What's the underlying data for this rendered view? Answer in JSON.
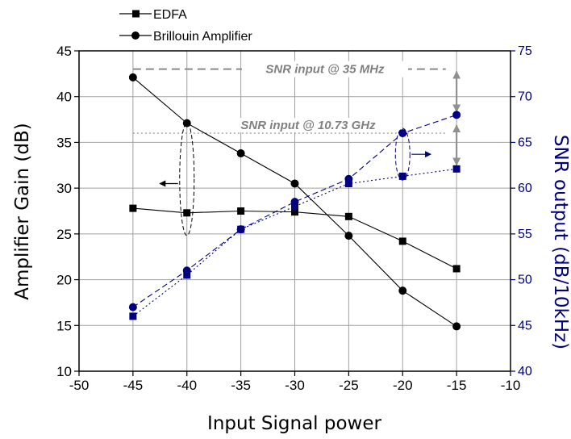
{
  "chart_data": {
    "type": "line",
    "xlabel": "Input Signal power",
    "ylabel": "Amplifier Gain (dB)",
    "y2label": "SNR output (dB/10kHz)",
    "xlim": [
      -50,
      -10
    ],
    "ylim": [
      10,
      45
    ],
    "y2lim": [
      40,
      75
    ],
    "x_ticks": [
      -50,
      -45,
      -40,
      -35,
      -30,
      -25,
      -20,
      -15,
      -10
    ],
    "y_ticks": [
      10,
      15,
      20,
      25,
      30,
      35,
      40,
      45
    ],
    "y2_ticks": [
      40,
      45,
      50,
      55,
      60,
      65,
      70,
      75
    ],
    "grid": true,
    "legend_position": "top-left, above plot",
    "series": [
      {
        "name": "EDFA",
        "axis": "left",
        "marker": "square",
        "color": "#000000",
        "x": [
          -45,
          -40,
          -35,
          -30,
          -25,
          -20,
          -15
        ],
        "values": [
          27.8,
          27.3,
          27.5,
          27.4,
          26.9,
          24.2,
          21.2
        ]
      },
      {
        "name": "Brillouin Amplifier",
        "axis": "left",
        "marker": "circle",
        "color": "#000000",
        "x": [
          -45,
          -40,
          -35,
          -30,
          -25,
          -20,
          -15
        ],
        "values": [
          42.1,
          37.1,
          33.8,
          30.5,
          24.8,
          18.8,
          14.9
        ]
      },
      {
        "axis": "right",
        "marker": "square",
        "style": "dotted",
        "color": "#000080",
        "x": [
          -45,
          -40,
          -35,
          -30,
          -25,
          -20,
          -15
        ],
        "values": [
          46,
          50.5,
          55.5,
          58,
          60.5,
          61.3,
          62.1
        ]
      },
      {
        "axis": "right",
        "marker": "circle",
        "style": "dashed",
        "color": "#000080",
        "x": [
          -45,
          -40,
          -35,
          -30,
          -25,
          -20,
          -15
        ],
        "values": [
          47,
          51,
          55.5,
          58.5,
          61,
          66,
          68
        ]
      }
    ],
    "annotations": [
      {
        "text": "SNR input @ 35 MHz",
        "y2": 73
      },
      {
        "text": "SNR input @ 10.73 GHz",
        "y2": 66
      }
    ]
  },
  "colors": {
    "left_series": "#000000",
    "right_series": "#000080",
    "annotation": "#808080",
    "grid": "#a0a0a0"
  }
}
